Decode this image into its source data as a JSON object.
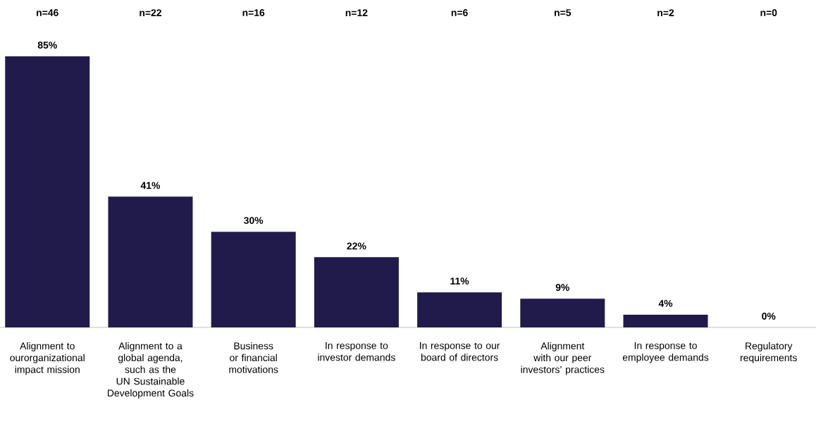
{
  "chart_data": {
    "type": "bar",
    "categories": [
      "Alignment to ourorganizational impact mission",
      "Alignment to a global agenda, such as the UN Sustainable Development Goals",
      "Business or financial motivations",
      "In response to investor demands",
      "In response to our board of directors",
      "Alignment with our peer investors’ practices",
      "In response to employee demands",
      "Regulatory requirements"
    ],
    "values": [
      85,
      41,
      30,
      22,
      11,
      9,
      4,
      0
    ],
    "value_labels": [
      "85%",
      "41%",
      "30%",
      "22%",
      "11%",
      "9%",
      "4%",
      "0%"
    ],
    "color": "#201b4b",
    "annotations": [
      "n=46",
      "n=22",
      "n=16",
      "n=12",
      "n=6",
      "n=5",
      "n=2",
      "n=0"
    ]
  }
}
